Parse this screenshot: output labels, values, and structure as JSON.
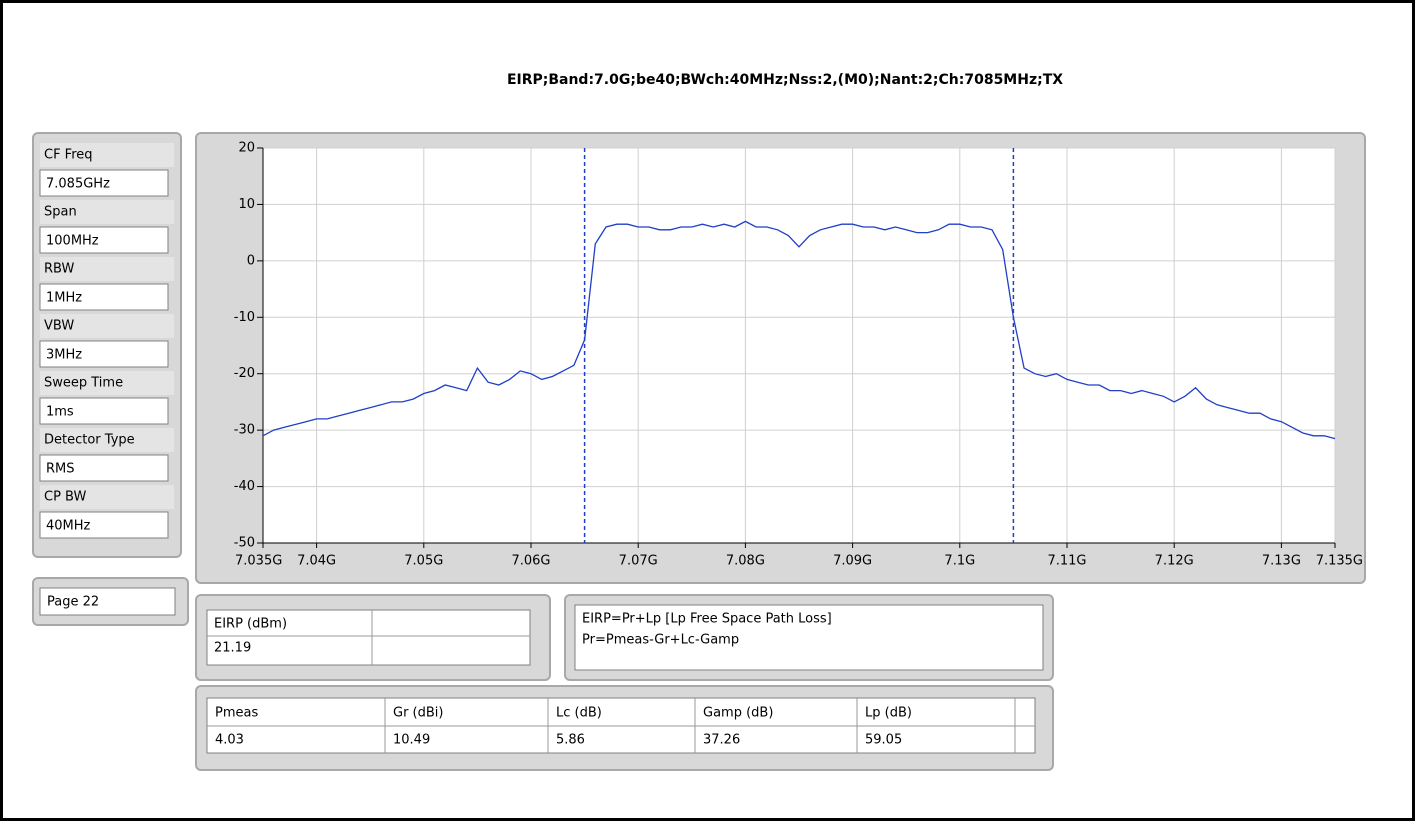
{
  "settings": [
    {
      "label": "CF Freq",
      "value": "7.085GHz"
    },
    {
      "label": "Span",
      "value": "100MHz"
    },
    {
      "label": "RBW",
      "value": "1MHz"
    },
    {
      "label": "VBW",
      "value": "3MHz"
    },
    {
      "label": "Sweep Time",
      "value": "1ms"
    },
    {
      "label": "Detector Type",
      "value": "RMS"
    },
    {
      "label": "CP BW",
      "value": "40MHz"
    }
  ],
  "page": "Page 22",
  "eirp_table": {
    "header": "EIRP (dBm)",
    "value": "21.19"
  },
  "formula": [
    "EIRP=Pr+Lp [Lp Free Space Path Loss]",
    "Pr=Pmeas-Gr+Lc-Gamp"
  ],
  "params_table": {
    "headers": [
      "Pmeas",
      "Gr (dBi)",
      "Lc (dB)",
      "Gamp (dB)",
      "Lp (dB)"
    ],
    "values": [
      "4.03",
      "10.49",
      "5.86",
      "37.26",
      "59.05"
    ]
  },
  "chart_data": {
    "type": "line",
    "title": "EIRP;Band:7.0G;be40;BWch:40MHz;Nss:2,(M0);Nant:2;Ch:7085MHz;TX",
    "color": "#1f3fc8",
    "grid": true,
    "xlim": [
      7.035,
      7.135
    ],
    "ylim": [
      -50,
      20
    ],
    "xticks": [
      {
        "value": 7.035,
        "label": "7.035G"
      },
      {
        "value": 7.04,
        "label": "7.04G"
      },
      {
        "value": 7.05,
        "label": "7.05G"
      },
      {
        "value": 7.06,
        "label": "7.06G"
      },
      {
        "value": 7.07,
        "label": "7.07G"
      },
      {
        "value": 7.08,
        "label": "7.08G"
      },
      {
        "value": 7.09,
        "label": "7.09G"
      },
      {
        "value": 7.1,
        "label": "7.1G"
      },
      {
        "value": 7.11,
        "label": "7.11G"
      },
      {
        "value": 7.12,
        "label": "7.12G"
      },
      {
        "value": 7.13,
        "label": "7.13G"
      },
      {
        "value": 7.135,
        "label": "7.135G"
      }
    ],
    "yticks": [
      20,
      10,
      0,
      -10,
      -20,
      -30,
      -40,
      -50
    ],
    "markers": [
      7.065,
      7.105
    ],
    "x": [
      7.035,
      7.036,
      7.037,
      7.038,
      7.039,
      7.04,
      7.041,
      7.042,
      7.043,
      7.044,
      7.045,
      7.046,
      7.047,
      7.048,
      7.049,
      7.05,
      7.051,
      7.052,
      7.053,
      7.054,
      7.055,
      7.056,
      7.057,
      7.058,
      7.059,
      7.06,
      7.061,
      7.062,
      7.063,
      7.064,
      7.065,
      7.066,
      7.067,
      7.068,
      7.069,
      7.07,
      7.071,
      7.072,
      7.073,
      7.074,
      7.075,
      7.076,
      7.077,
      7.078,
      7.079,
      7.08,
      7.081,
      7.082,
      7.083,
      7.084,
      7.085,
      7.086,
      7.087,
      7.088,
      7.089,
      7.09,
      7.091,
      7.092,
      7.093,
      7.094,
      7.095,
      7.096,
      7.097,
      7.098,
      7.099,
      7.1,
      7.101,
      7.102,
      7.103,
      7.104,
      7.105,
      7.106,
      7.107,
      7.108,
      7.109,
      7.11,
      7.111,
      7.112,
      7.113,
      7.114,
      7.115,
      7.116,
      7.117,
      7.118,
      7.119,
      7.12,
      7.121,
      7.122,
      7.123,
      7.124,
      7.125,
      7.126,
      7.127,
      7.128,
      7.129,
      7.13,
      7.131,
      7.132,
      7.133,
      7.134,
      7.135
    ],
    "values": [
      -31,
      -30,
      -29.5,
      -29,
      -28.5,
      -28,
      -28,
      -27.5,
      -27,
      -26.5,
      -26,
      -25.5,
      -25,
      -25,
      -24.5,
      -23.5,
      -23,
      -22,
      -22.5,
      -23,
      -19,
      -21.5,
      -22,
      -21,
      -19.5,
      -20,
      -21,
      -20.5,
      -19.5,
      -18.5,
      -14,
      3,
      6,
      6.5,
      6.5,
      6,
      6,
      5.5,
      5.5,
      6,
      6,
      6.5,
      6,
      6.5,
      6,
      7,
      6,
      6,
      5.5,
      4.5,
      2.5,
      4.5,
      5.5,
      6,
      6.5,
      6.5,
      6,
      6,
      5.5,
      6,
      5.5,
      5,
      5,
      5.5,
      6.5,
      6.5,
      6,
      6,
      5.5,
      2,
      -10,
      -19,
      -20,
      -20.5,
      -20,
      -21,
      -21.5,
      -22,
      -22,
      -23,
      -23,
      -23.5,
      -23,
      -23.5,
      -24,
      -25,
      -24,
      -22.5,
      -24.5,
      -25.5,
      -26,
      -26.5,
      -27,
      -27,
      -28,
      -28.5,
      -29.5,
      -30.5,
      -31,
      -31,
      -31.5
    ]
  }
}
